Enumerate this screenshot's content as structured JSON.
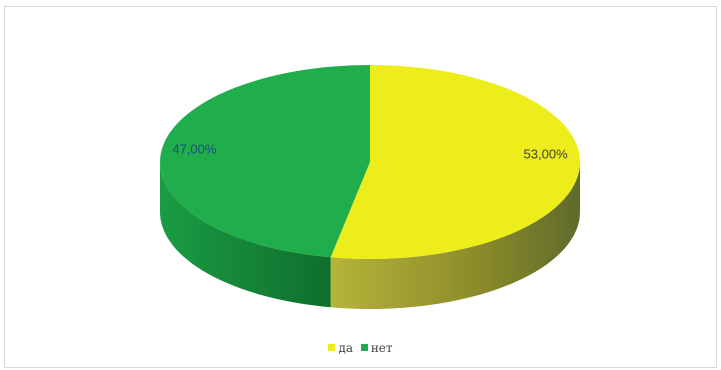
{
  "chart_data": {
    "type": "pie",
    "title": "",
    "categories": [
      "да",
      "нет"
    ],
    "values": [
      53,
      47
    ],
    "data_labels": [
      "53,00%",
      "47,00%"
    ],
    "colors": {
      "да": "#eded1c",
      "нет": "#1fae4b"
    },
    "side_colors": {
      "да": "#8b8b2a",
      "нет": "#168a3a"
    },
    "label_colors": {
      "да": "#404040",
      "нет": "#1f4e79"
    },
    "legend_position": "bottom",
    "style": "3d"
  }
}
